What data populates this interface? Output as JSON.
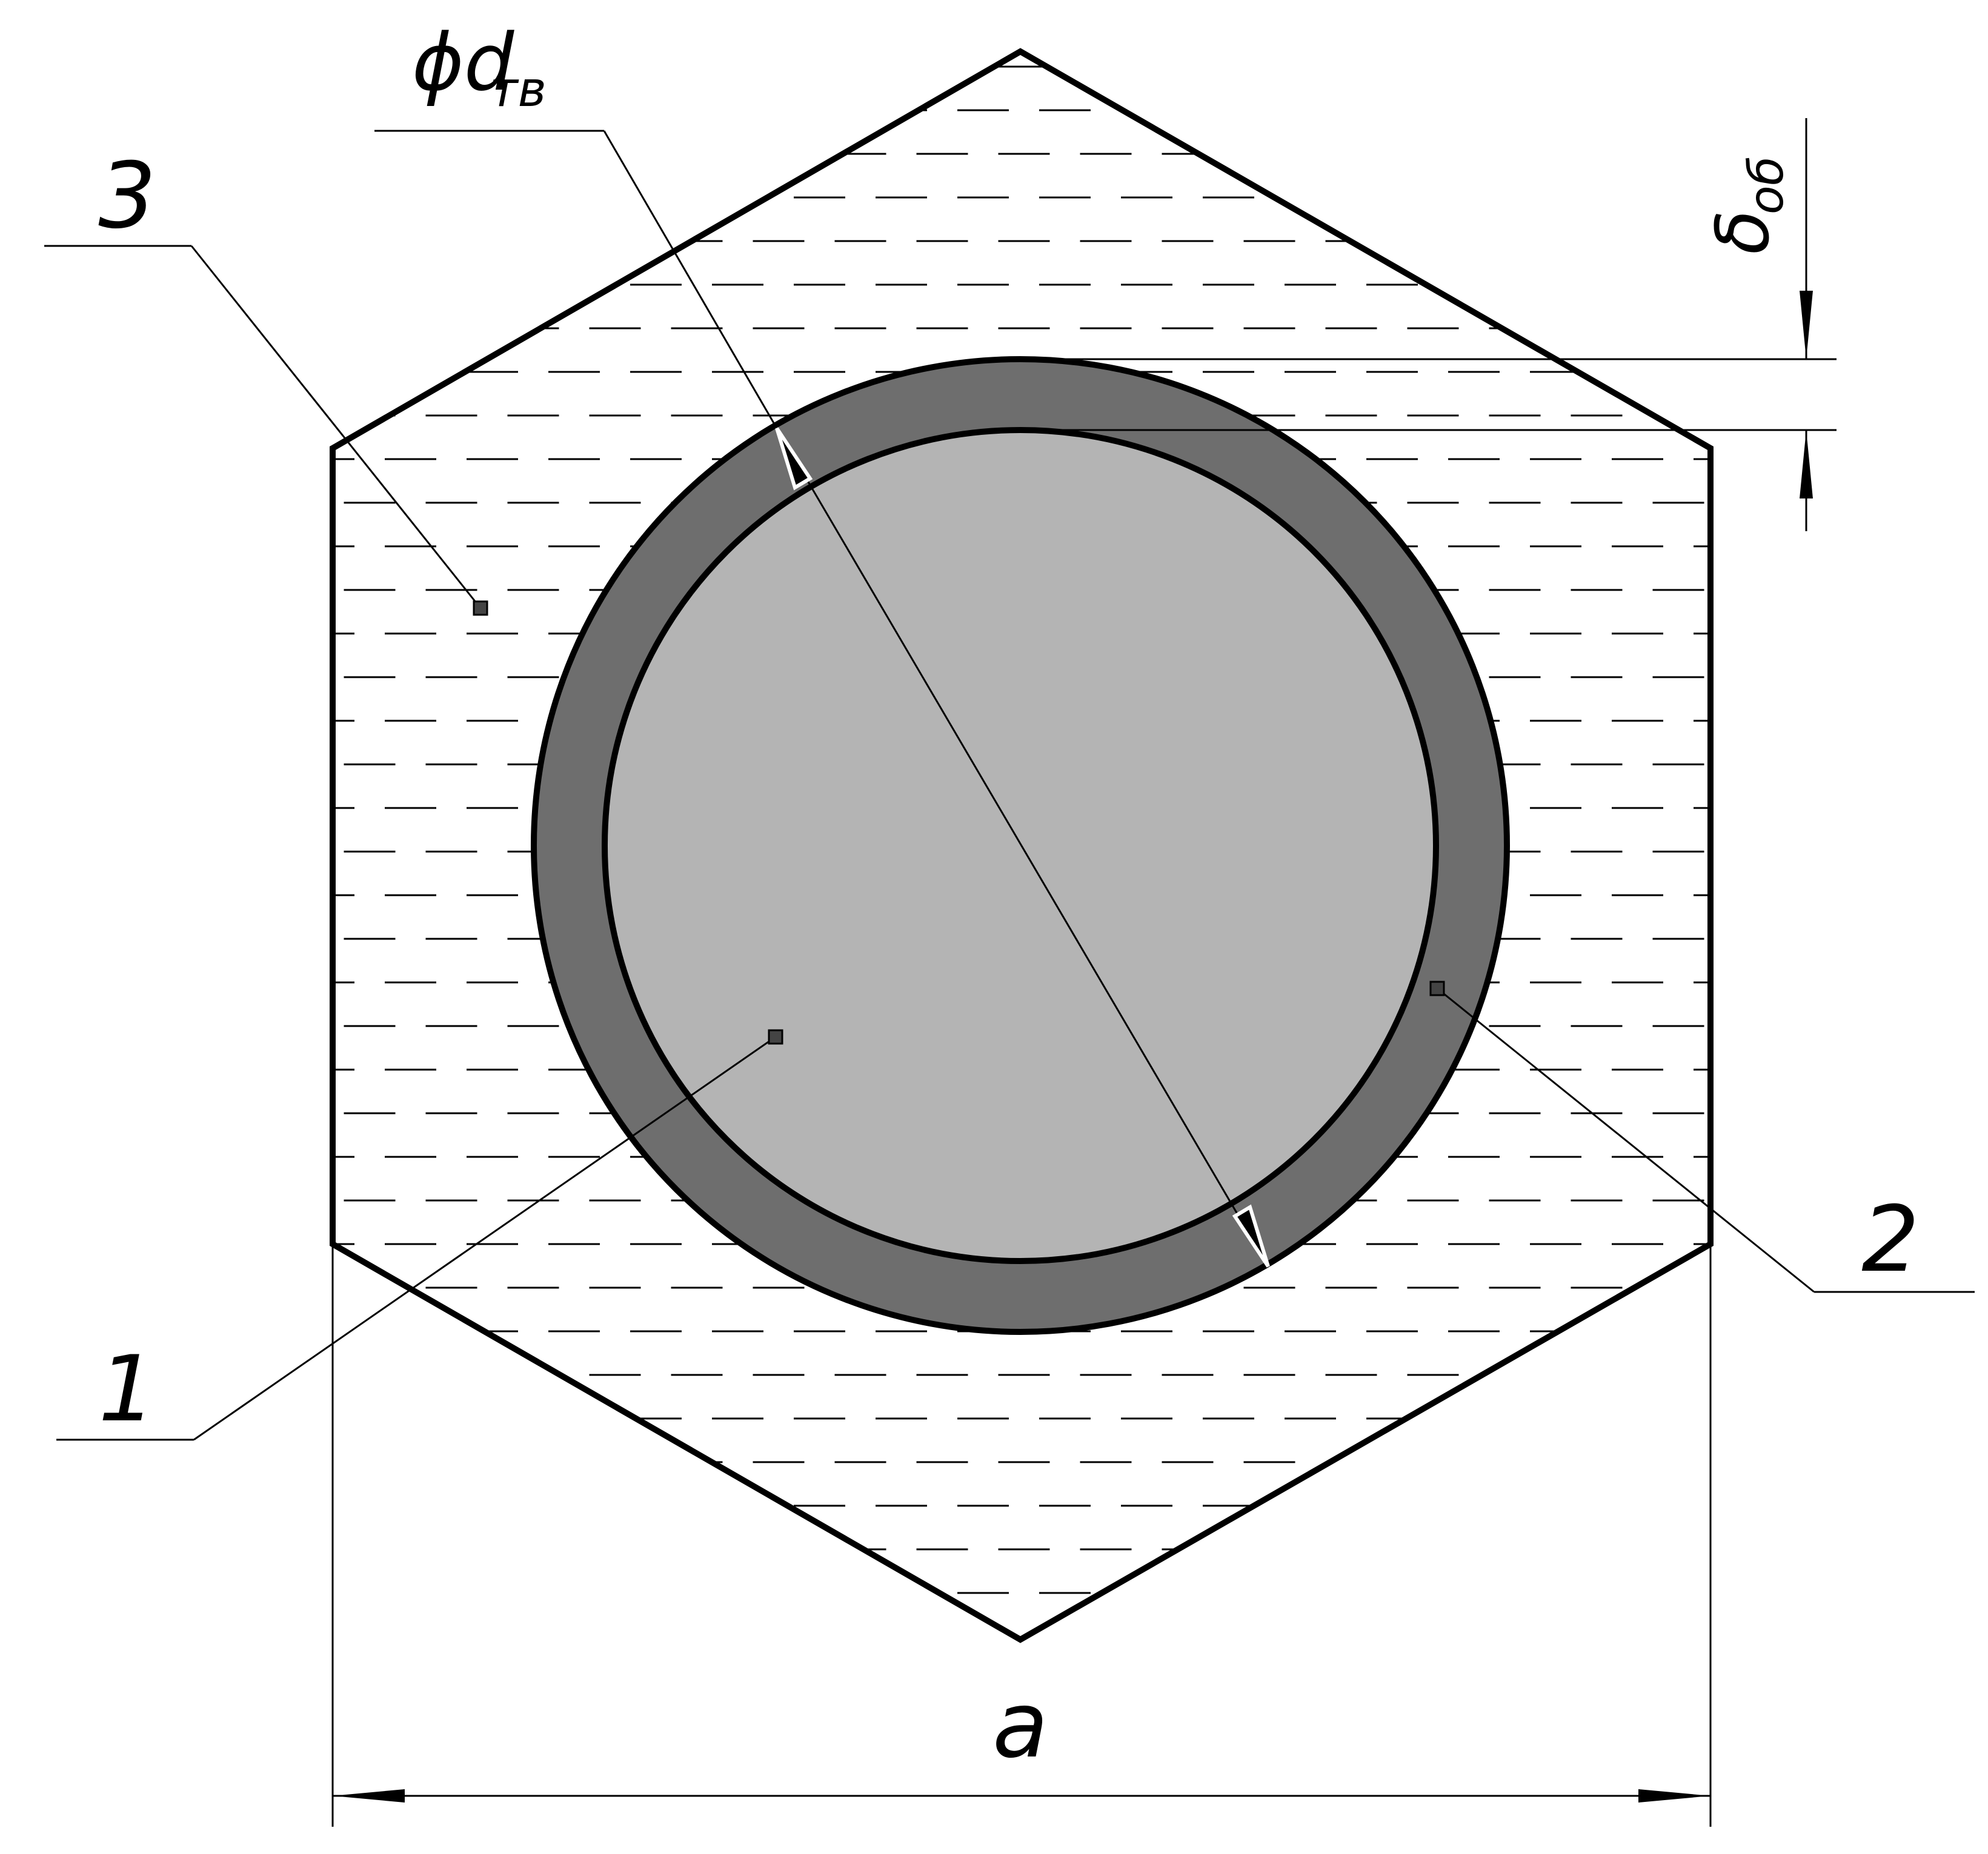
{
  "labels": {
    "diameter": "ϕd",
    "diameter_sub": "тв",
    "thickness": "δ",
    "thickness_sub": "об",
    "width": "a",
    "callout_1": "1",
    "callout_2": "2",
    "callout_3": "3"
  },
  "colors": {
    "background": "#ffffff",
    "filler": "#ffffff",
    "sheath": "#6e6e6e",
    "core": "#b4b4b4",
    "stroke": "#000000",
    "hatch": "#000000",
    "arrow_outline": "#ffffff"
  }
}
